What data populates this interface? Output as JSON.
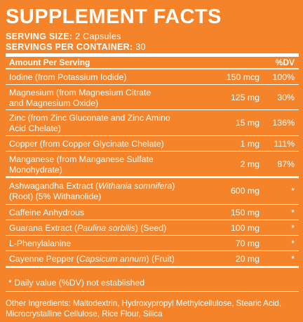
{
  "title": "SUPPLEMENT FACTS",
  "serving_size_label": "SERVING SIZE:",
  "serving_size_value": "2 Capsules",
  "servings_per_container_label": "SERVINGS PER CONTAINER:",
  "servings_per_container_value": "30",
  "table": {
    "header_amount": "Amount Per Serving",
    "header_dv": "%DV",
    "rows": [
      {
        "name_lines": [
          "Iodine (from Potassium Iodide)"
        ],
        "amount": "150 mcg",
        "dv": "100%"
      },
      {
        "name_lines": [
          "Magnesium (from Magnesium Citrate",
          "and Magnesium Oxide)"
        ],
        "amount": "125 mg",
        "dv": "30%"
      },
      {
        "name_lines": [
          "Zinc (from Zinc Gluconate and Zinc Amino",
          "Acid Chelate)"
        ],
        "amount": "15 mg",
        "dv": "136%"
      },
      {
        "name_lines": [
          "Copper (from Copper Glycinate Chelate)"
        ],
        "amount": "1 mg",
        "dv": "111%"
      },
      {
        "name_lines": [
          "Manganese (from Manganese Sulfate",
          "Monohydrate)"
        ],
        "amount": "2 mg",
        "dv": "87%"
      },
      {
        "name_parts": [
          "Ashwagandha Extract (",
          "Withania somnifera",
          ")"
        ],
        "name_line2": "(Root) (5% Withanolide)",
        "amount": "600 mg",
        "dv": "*"
      },
      {
        "name_lines": [
          "Caffeine Anhydrous"
        ],
        "amount": "150 mg",
        "dv": "*"
      },
      {
        "name_parts": [
          "Guarana Extract (",
          "Paulina sorbilis",
          ") (Seed)"
        ],
        "amount": "100 mg",
        "dv": "*"
      },
      {
        "name_lines": [
          "L-Phenylalanine"
        ],
        "amount": "70 mg",
        "dv": "*"
      },
      {
        "name_parts": [
          "Cayenne Pepper (",
          "Capsicum annum",
          ") (Fruit)"
        ],
        "amount": "20 mg",
        "dv": "*"
      }
    ]
  },
  "footnote": "* Daily value (%DV) not established",
  "other_ingredients": "Other Ingredients: Maltodextrin, Hydroxypropyl Methylcellulose, Stearic Acid, Microcrystalline Cellulose, Rice Flour, Silica"
}
